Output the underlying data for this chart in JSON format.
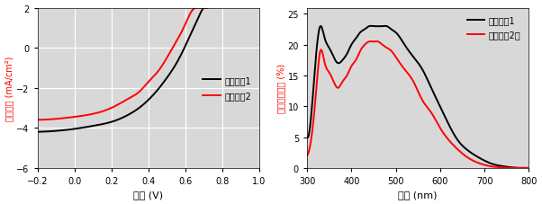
{
  "plot1": {
    "xlabel": "電圧 (V)",
    "ylabel": "電流密度 (mA/cm²)",
    "xlim": [
      -0.2,
      1.0
    ],
    "ylim": [
      -6,
      2
    ],
    "xticks": [
      -0.2,
      0.0,
      0.2,
      0.4,
      0.6,
      0.8,
      1.0
    ],
    "yticks": [
      -6,
      -4,
      -2,
      0,
      2
    ],
    "legend": [
      "ポリマー1",
      "ポリマー2"
    ],
    "colors": [
      "black",
      "red"
    ],
    "grid": true,
    "bg_color": "#d8d8d8"
  },
  "plot2": {
    "xlabel": "波長 (nm)",
    "ylabel": "外部量子収率 (%)",
    "xlim": [
      300,
      800
    ],
    "ylim": [
      0,
      26
    ],
    "xticks": [
      300,
      400,
      500,
      600,
      700,
      800
    ],
    "yticks": [
      0,
      5,
      10,
      15,
      20,
      25
    ],
    "legend": [
      "ポリマー1",
      "ポリマー2　"
    ],
    "colors": [
      "black",
      "red"
    ],
    "grid": false,
    "bg_color": "#d8d8d8"
  },
  "jv_p1": {
    "v_pts": [
      -0.2,
      -0.1,
      0.0,
      0.1,
      0.2,
      0.3,
      0.35,
      0.4,
      0.45,
      0.5,
      0.55,
      0.6,
      0.62,
      0.64,
      0.66,
      0.68,
      0.7,
      0.72,
      0.75,
      0.8,
      0.85
    ],
    "j_pts": [
      -4.2,
      -4.15,
      -4.05,
      -3.9,
      -3.7,
      -3.3,
      -3.0,
      -2.6,
      -2.1,
      -1.5,
      -0.8,
      0.1,
      0.5,
      0.9,
      1.3,
      1.7,
      2.0,
      2.0,
      2.0,
      2.0,
      2.0
    ]
  },
  "jv_p2": {
    "v_pts": [
      -0.2,
      -0.1,
      0.0,
      0.1,
      0.2,
      0.3,
      0.35,
      0.4,
      0.45,
      0.5,
      0.55,
      0.58,
      0.6,
      0.62,
      0.64,
      0.66,
      0.68,
      0.7,
      0.75,
      0.8,
      0.85
    ],
    "j_pts": [
      -3.6,
      -3.55,
      -3.45,
      -3.3,
      -3.0,
      -2.5,
      -2.2,
      -1.7,
      -1.2,
      -0.5,
      0.3,
      0.8,
      1.2,
      1.6,
      1.9,
      2.0,
      2.0,
      2.0,
      2.0,
      2.0,
      2.0
    ]
  },
  "eqe_p1_wl": [
    300,
    310,
    320,
    330,
    340,
    350,
    360,
    370,
    380,
    390,
    400,
    410,
    420,
    430,
    440,
    450,
    460,
    470,
    480,
    490,
    500,
    520,
    540,
    560,
    580,
    600,
    620,
    640,
    660,
    680,
    700,
    720,
    740,
    760,
    780,
    800
  ],
  "eqe_p1_val": [
    5,
    9,
    18,
    23,
    21,
    19.5,
    18,
    17,
    17.5,
    18.5,
    20,
    21,
    22,
    22.5,
    23,
    23,
    23,
    23,
    23,
    22.5,
    22,
    20,
    18,
    16,
    13,
    10,
    7,
    4.5,
    3,
    2,
    1.2,
    0.6,
    0.3,
    0.1,
    0,
    0
  ],
  "eqe_p2_wl": [
    300,
    310,
    320,
    330,
    340,
    350,
    360,
    370,
    380,
    390,
    400,
    410,
    420,
    430,
    440,
    450,
    460,
    470,
    480,
    490,
    500,
    520,
    540,
    560,
    580,
    600,
    620,
    640,
    660,
    680,
    700,
    720,
    740,
    760,
    780,
    800
  ],
  "eqe_p2_val": [
    2,
    5,
    12,
    19,
    17,
    15.5,
    14,
    13,
    14,
    15,
    16.5,
    17.5,
    19,
    20,
    20.5,
    20.5,
    20.5,
    20,
    19.5,
    19,
    18,
    16,
    14,
    11,
    9,
    6.5,
    4.5,
    3,
    1.8,
    1,
    0.5,
    0.2,
    0.1,
    0,
    0,
    0
  ]
}
